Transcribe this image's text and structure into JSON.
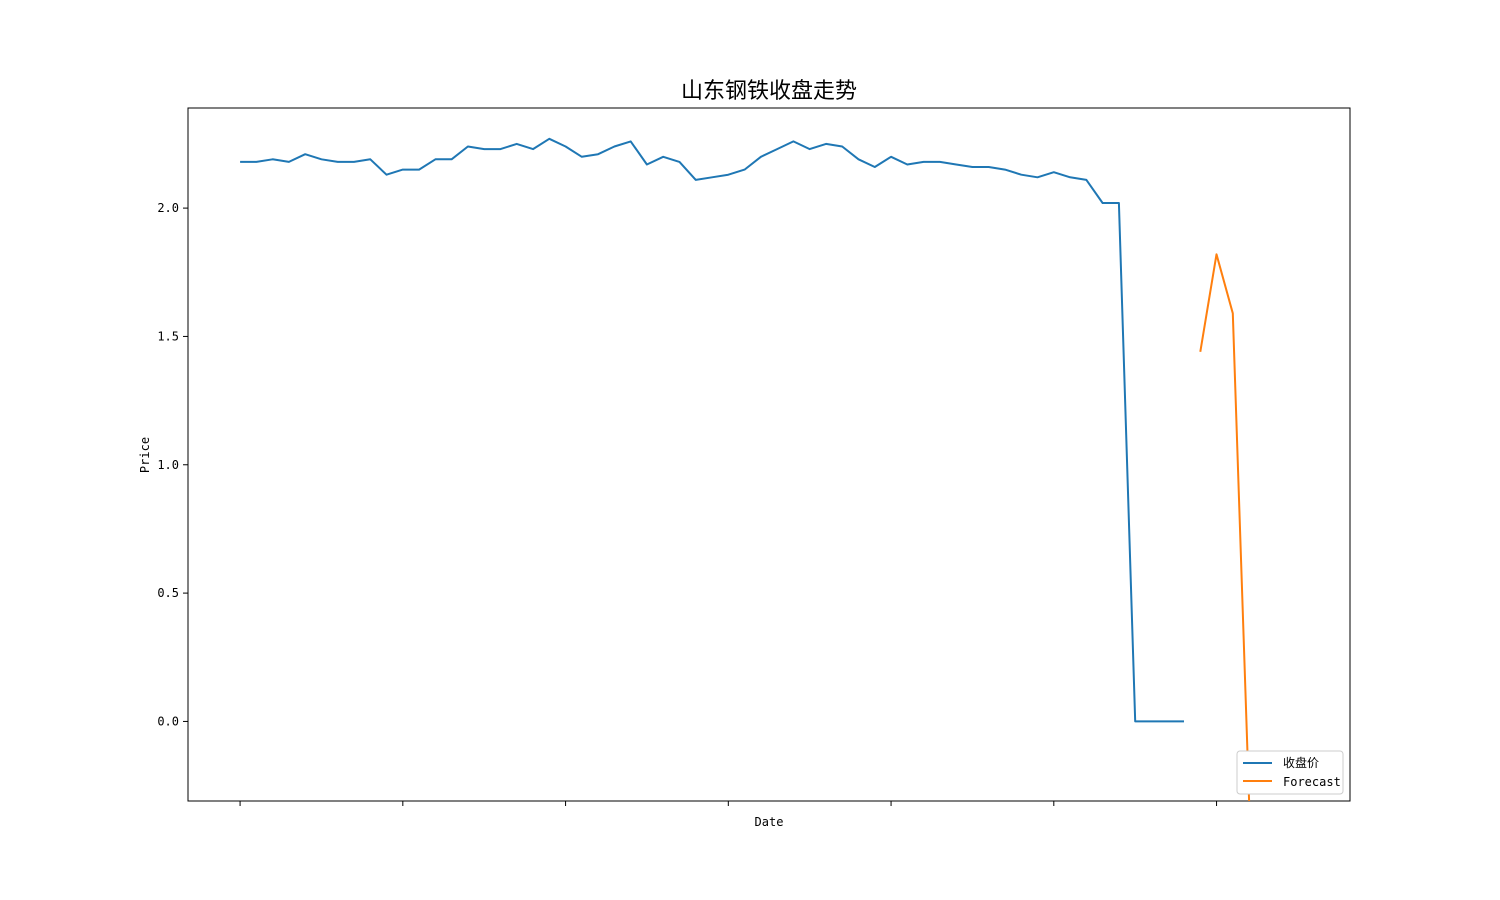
{
  "chart_data": {
    "type": "line",
    "title": "山东钢铁收盘走势",
    "xlabel": "Date",
    "ylabel": "Price",
    "ylim": [
      -0.31,
      2.39
    ],
    "xlim": [
      -3.2,
      68.2
    ],
    "yticks": [
      0.0,
      0.5,
      1.0,
      1.5,
      2.0
    ],
    "ytick_labels": [
      "0.0",
      "0.5",
      "1.0",
      "1.5",
      "2.0"
    ],
    "xticks": [
      0,
      10,
      20,
      30,
      40,
      50,
      60
    ],
    "xtick_labels": [
      "",
      "",
      "",
      "",
      "",
      "",
      ""
    ],
    "grid": false,
    "legend_position": "lower-right",
    "series": [
      {
        "name": "收盘价",
        "color": "#1f77b4",
        "x": [
          0,
          1,
          2,
          3,
          4,
          5,
          6,
          7,
          8,
          9,
          10,
          11,
          12,
          13,
          14,
          15,
          16,
          17,
          18,
          19,
          20,
          21,
          22,
          23,
          24,
          25,
          26,
          27,
          28,
          29,
          30,
          31,
          32,
          33,
          34,
          35,
          36,
          37,
          38,
          39,
          40,
          41,
          42,
          43,
          44,
          45,
          46,
          47,
          48,
          49,
          50,
          51,
          52,
          53,
          54,
          55,
          56,
          57,
          58
        ],
        "values": [
          2.18,
          2.18,
          2.19,
          2.18,
          2.21,
          2.19,
          2.18,
          2.18,
          2.19,
          2.13,
          2.15,
          2.15,
          2.19,
          2.19,
          2.24,
          2.23,
          2.23,
          2.25,
          2.23,
          2.27,
          2.24,
          2.2,
          2.21,
          2.24,
          2.26,
          2.17,
          2.2,
          2.18,
          2.11,
          2.12,
          2.13,
          2.15,
          2.2,
          2.23,
          2.26,
          2.23,
          2.25,
          2.24,
          2.19,
          2.16,
          2.2,
          2.17,
          2.18,
          2.18,
          2.17,
          2.16,
          2.16,
          2.15,
          2.13,
          2.12,
          2.14,
          2.12,
          2.11,
          2.02,
          2.02,
          0.0,
          0.0,
          0.0,
          0.0
        ]
      },
      {
        "name": "Forecast",
        "color": "#ff7f0e",
        "x": [
          59,
          60,
          61,
          62
        ],
        "values": [
          1.44,
          1.82,
          1.59,
          -0.31
        ]
      }
    ]
  }
}
